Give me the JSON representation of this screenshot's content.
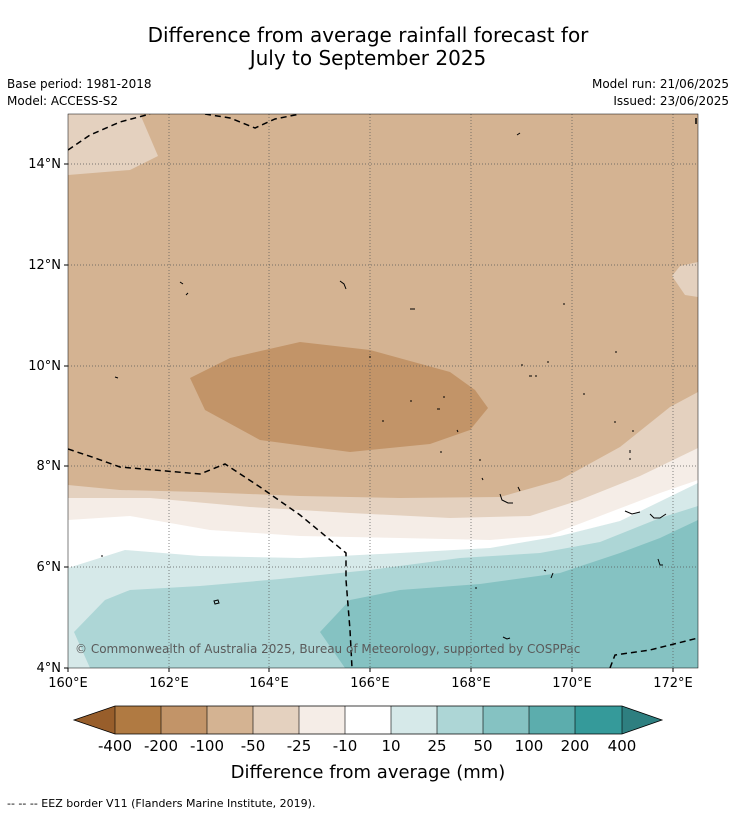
{
  "title": {
    "line1": "Difference from average rainfall forecast for",
    "line2": "July to September 2025"
  },
  "meta": {
    "base_period": "Base period: 1981-2018",
    "model": "Model: ACCESS-S2",
    "model_run": "Model run: 21/06/2025",
    "issued": "Issued: 23/06/2025"
  },
  "map": {
    "lon_range": [
      160,
      172.5
    ],
    "lat_range": [
      4,
      15
    ],
    "lat_ticks": [
      {
        "value": 14,
        "label": "14°N"
      },
      {
        "value": 12,
        "label": "12°N"
      },
      {
        "value": 10,
        "label": "10°N"
      },
      {
        "value": 8,
        "label": "8°N"
      },
      {
        "value": 6,
        "label": "6°N"
      },
      {
        "value": 4,
        "label": "4°N"
      }
    ],
    "lon_ticks": [
      {
        "value": 160,
        "label": "160°E"
      },
      {
        "value": 162,
        "label": "162°E"
      },
      {
        "value": 164,
        "label": "164°E"
      },
      {
        "value": 166,
        "label": "166°E"
      },
      {
        "value": 168,
        "label": "168°E"
      },
      {
        "value": 170,
        "label": "170°E"
      },
      {
        "value": 172,
        "label": "172°E"
      }
    ],
    "gridlines": true,
    "copyright": "© Commonwealth of Australia 2025, Bureau of Meteorology, supported by COSPPac"
  },
  "colorbar": {
    "title": "Difference from average (mm)",
    "labels": [
      "-400",
      "-200",
      "-100",
      "-50",
      "-25",
      "-10",
      "10",
      "25",
      "50",
      "100",
      "200",
      "400"
    ],
    "colors": {
      "lt_minus400": "#985e2b",
      "m400_m200": "#b07a42",
      "m200_m100": "#c29468",
      "m100_m50": "#d4b392",
      "m50_m25": "#e4d1bf",
      "m25_m10": "#f5ede7",
      "m10_10": "#ffffff",
      "p10_25": "#d6e9e9",
      "p25_50": "#add6d6",
      "p50_100": "#85c2c2",
      "p100_200": "#5cadad",
      "p200_400": "#359a9a",
      "gt400": "#2e7f80"
    }
  },
  "footer": "--  --  -- EEZ border V11 (Flanders Marine Institute, 2019)."
}
